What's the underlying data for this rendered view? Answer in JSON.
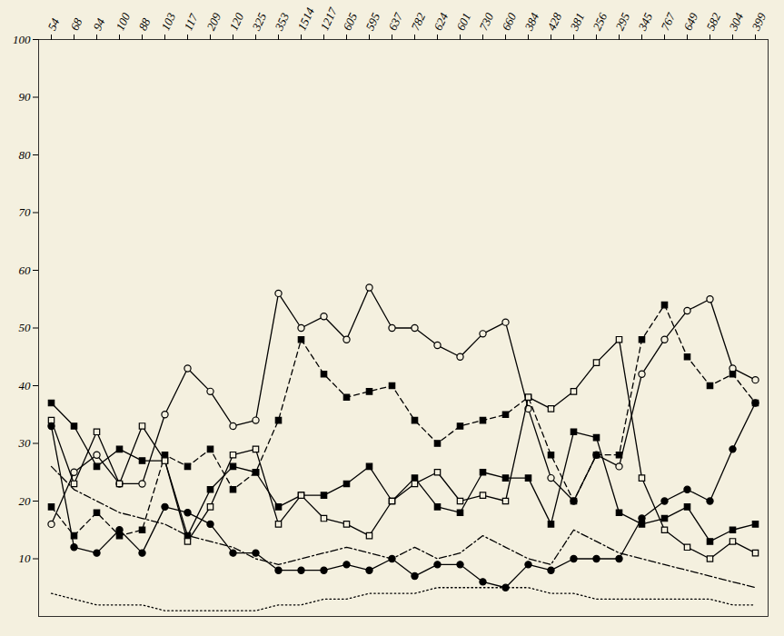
{
  "chart_data": {
    "type": "line",
    "categories": [
      "54",
      "68",
      "94",
      "100",
      "88",
      "103",
      "117",
      "209",
      "120",
      "325",
      "353",
      "1514",
      "1217",
      "605",
      "595",
      "637",
      "782",
      "624",
      "601",
      "730",
      "660",
      "384",
      "428",
      "381",
      "256",
      "295",
      "345",
      "767",
      "649",
      "582",
      "304",
      "399"
    ],
    "ylim": [
      0,
      100
    ],
    "yticks": [
      10,
      20,
      30,
      40,
      50,
      60,
      70,
      80,
      90,
      100
    ],
    "grid": false,
    "series": [
      {
        "color": "#000000",
        "marker": "circle-open",
        "line_style": "solid",
        "values": [
          16,
          25,
          28,
          23,
          23,
          35,
          43,
          39,
          33,
          34,
          56,
          50,
          52,
          48,
          57,
          50,
          50,
          47,
          45,
          49,
          51,
          36,
          24,
          20,
          28,
          26,
          42,
          48,
          53,
          55,
          43,
          41
        ]
      },
      {
        "color": "#000000",
        "marker": "square",
        "line_style": "dashed",
        "values": [
          19,
          14,
          18,
          14,
          15,
          28,
          26,
          29,
          22,
          25,
          34,
          48,
          42,
          38,
          39,
          40,
          34,
          30,
          33,
          34,
          35,
          38,
          28,
          20,
          28,
          28,
          48,
          54,
          45,
          40,
          42,
          37
        ]
      },
      {
        "color": "#000000",
        "marker": "square",
        "line_style": "solid",
        "values": [
          37,
          33,
          26,
          29,
          27,
          27,
          14,
          22,
          26,
          25,
          19,
          21,
          21,
          23,
          26,
          20,
          24,
          19,
          18,
          25,
          24,
          24,
          16,
          32,
          31,
          18,
          16,
          17,
          19,
          13,
          15,
          16
        ]
      },
      {
        "color": "#000000",
        "marker": "square-open",
        "line_style": "solid",
        "values": [
          34,
          23,
          32,
          23,
          33,
          27,
          13,
          19,
          28,
          29,
          16,
          21,
          17,
          16,
          14,
          20,
          23,
          25,
          20,
          21,
          20,
          38,
          36,
          39,
          44,
          48,
          24,
          15,
          12,
          10,
          13,
          11
        ]
      },
      {
        "color": "#000000",
        "marker": "circle",
        "line_style": "solid",
        "values": [
          33,
          12,
          11,
          15,
          11,
          19,
          18,
          16,
          11,
          11,
          8,
          8,
          8,
          9,
          8,
          10,
          7,
          9,
          9,
          6,
          5,
          9,
          8,
          10,
          10,
          10,
          17,
          20,
          22,
          20,
          29,
          37
        ]
      },
      {
        "color": "#000000",
        "line_style": "dashdot",
        "values": [
          26,
          22,
          20,
          18,
          17,
          16,
          14,
          13,
          12,
          10,
          9,
          10,
          11,
          12,
          11,
          10,
          12,
          10,
          11,
          14,
          12,
          10,
          9,
          15,
          13,
          11,
          10,
          9,
          8,
          7,
          6,
          5
        ]
      },
      {
        "color": "#000000",
        "line_style": "dotted",
        "values": [
          4,
          3,
          2,
          2,
          2,
          1,
          1,
          1,
          1,
          1,
          2,
          2,
          3,
          3,
          4,
          4,
          4,
          5,
          5,
          5,
          5,
          5,
          4,
          4,
          3,
          3,
          3,
          3,
          3,
          3,
          2,
          2
        ]
      }
    ]
  }
}
